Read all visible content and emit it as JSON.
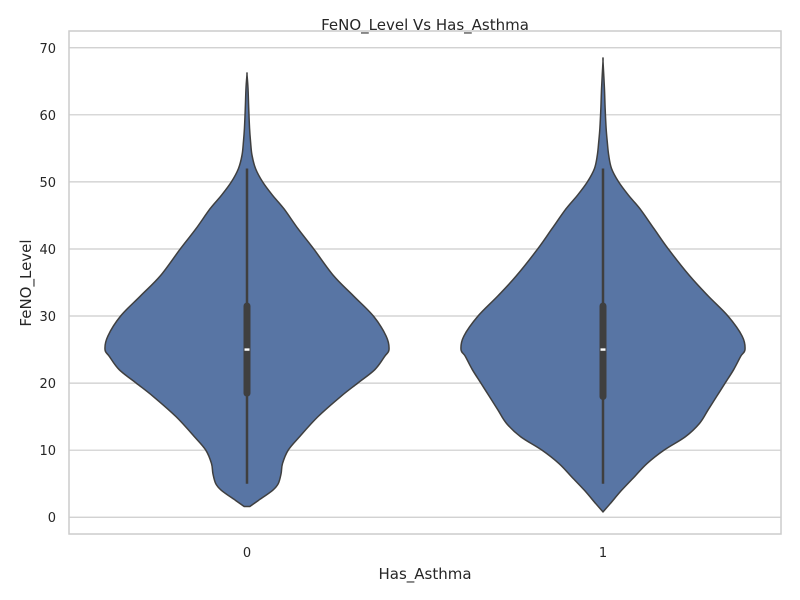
{
  "chart_data": {
    "type": "violin",
    "title": "FeNO_Level Vs Has_Asthma",
    "xlabel": "Has_Asthma",
    "ylabel": "FeNO_Level",
    "categories": [
      "0",
      "1"
    ],
    "ylim": [
      -2.5,
      72.5
    ],
    "yticks": [
      0,
      10,
      20,
      30,
      40,
      50,
      60,
      70
    ],
    "grid": true,
    "fill_color": "#5875a4",
    "edge_color": "#3f3f3f",
    "violins": [
      {
        "category": "0",
        "density_profile": [
          [
            1.6,
            0.02
          ],
          [
            2.5,
            0.08
          ],
          [
            4.0,
            0.18
          ],
          [
            5.0,
            0.22
          ],
          [
            6.5,
            0.24
          ],
          [
            8.0,
            0.25
          ],
          [
            10.0,
            0.29
          ],
          [
            12.0,
            0.37
          ],
          [
            15.0,
            0.5
          ],
          [
            18.0,
            0.66
          ],
          [
            20.0,
            0.78
          ],
          [
            22.0,
            0.9
          ],
          [
            24.0,
            0.97
          ],
          [
            25.0,
            1.0
          ],
          [
            27.0,
            0.98
          ],
          [
            30.0,
            0.89
          ],
          [
            33.0,
            0.75
          ],
          [
            36.0,
            0.61
          ],
          [
            40.0,
            0.47
          ],
          [
            43.0,
            0.36
          ],
          [
            46.0,
            0.26
          ],
          [
            48.0,
            0.18
          ],
          [
            50.0,
            0.11
          ],
          [
            52.0,
            0.06
          ],
          [
            54.0,
            0.035
          ],
          [
            56.0,
            0.025
          ],
          [
            58.0,
            0.018
          ],
          [
            61.0,
            0.012
          ],
          [
            64.0,
            0.007
          ],
          [
            66.0,
            0.0
          ]
        ],
        "whisker_low": 5,
        "whisker_high": 52,
        "q1": 18.5,
        "median": 25,
        "q3": 31.5
      },
      {
        "category": "1",
        "density_profile": [
          [
            0.8,
            0.0
          ],
          [
            2.0,
            0.05
          ],
          [
            4.0,
            0.13
          ],
          [
            6.0,
            0.22
          ],
          [
            8.0,
            0.31
          ],
          [
            10.0,
            0.43
          ],
          [
            12.0,
            0.58
          ],
          [
            14.0,
            0.68
          ],
          [
            16.0,
            0.74
          ],
          [
            18.0,
            0.8
          ],
          [
            20.0,
            0.86
          ],
          [
            22.0,
            0.92
          ],
          [
            24.0,
            0.97
          ],
          [
            25.0,
            1.0
          ],
          [
            27.0,
            0.98
          ],
          [
            30.0,
            0.88
          ],
          [
            33.0,
            0.74
          ],
          [
            36.0,
            0.61
          ],
          [
            40.0,
            0.46
          ],
          [
            43.0,
            0.36
          ],
          [
            46.0,
            0.26
          ],
          [
            48.0,
            0.18
          ],
          [
            50.0,
            0.11
          ],
          [
            52.0,
            0.06
          ],
          [
            54.0,
            0.04
          ],
          [
            56.0,
            0.03
          ],
          [
            58.0,
            0.022
          ],
          [
            61.0,
            0.015
          ],
          [
            64.0,
            0.01
          ],
          [
            68.0,
            0.0
          ]
        ],
        "whisker_low": 5,
        "whisker_high": 52,
        "q1": 18,
        "median": 25,
        "q3": 31.5
      }
    ]
  }
}
